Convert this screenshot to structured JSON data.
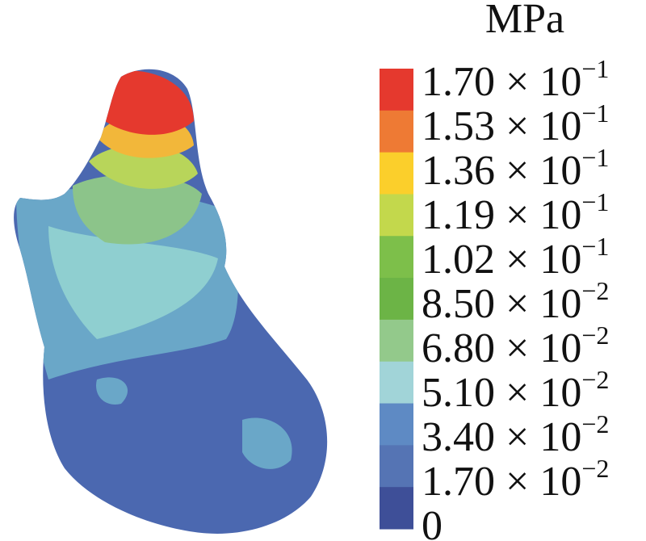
{
  "title": "MPa",
  "legend": {
    "colors": [
      "#e5392e",
      "#ee7a34",
      "#fbcf2b",
      "#c3d84c",
      "#7dbf4a",
      "#6cb446",
      "#93c98b",
      "#a1d4d8",
      "#5e8ac4",
      "#5574b4",
      "#3e4f98"
    ],
    "labels": [
      {
        "text": "1.70 × 10",
        "exponent": "−1"
      },
      {
        "text": "1.53 × 10",
        "exponent": "−1"
      },
      {
        "text": "1.36 × 10",
        "exponent": "−1"
      },
      {
        "text": "1.19 × 10",
        "exponent": "−1"
      },
      {
        "text": "1.02 × 10",
        "exponent": "−1"
      },
      {
        "text": "8.50 × 10",
        "exponent": "−2"
      },
      {
        "text": "6.80 × 10",
        "exponent": "−2"
      },
      {
        "text": "5.10 × 10",
        "exponent": "−2"
      },
      {
        "text": "3.40 × 10",
        "exponent": "−2"
      },
      {
        "text": "1.70 × 10",
        "exponent": "−2"
      },
      {
        "text": "0"
      }
    ]
  }
}
